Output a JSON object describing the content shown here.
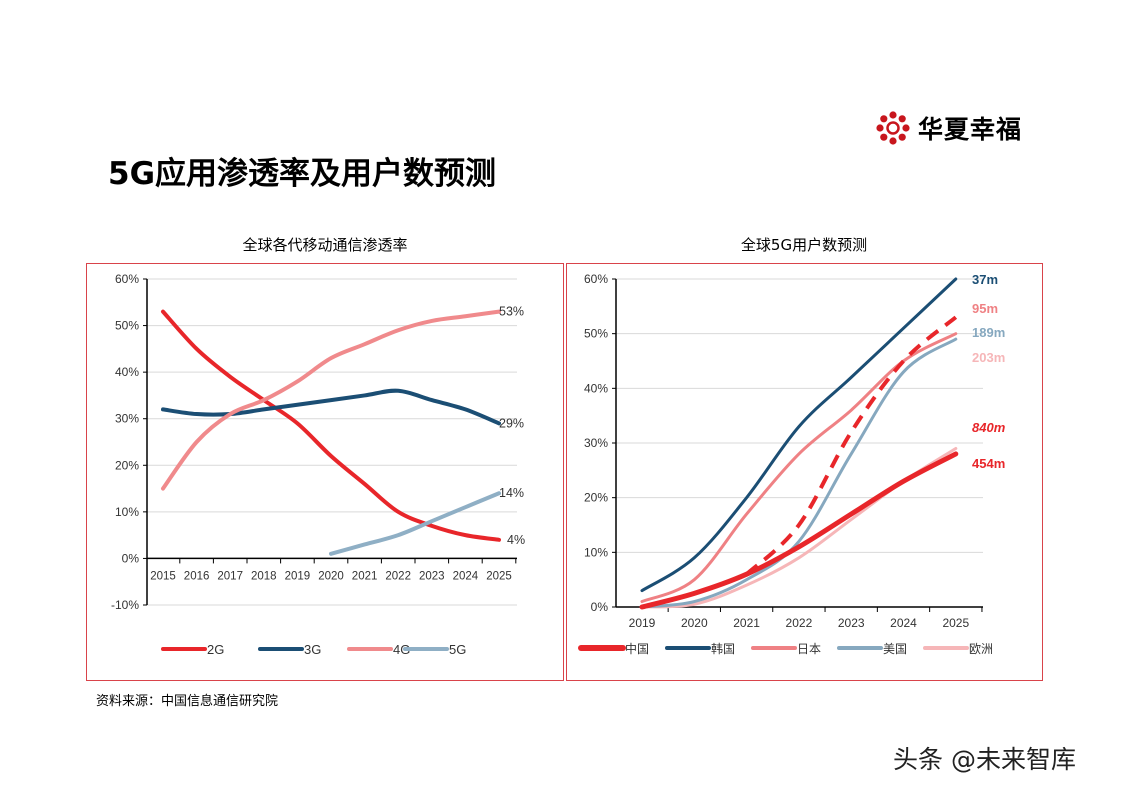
{
  "page": {
    "title": "5G应用渗透率及用户数预测",
    "logo_text": "华夏幸福",
    "source": "资料来源：中国信息通信研究院",
    "watermark": "头条 @未来智库"
  },
  "chart_data": [
    {
      "type": "line",
      "title": "全球各代移动通信渗透率",
      "x": [
        "2015",
        "2016",
        "2017",
        "2018",
        "2019",
        "2020",
        "2021",
        "2022",
        "2023",
        "2024",
        "2025"
      ],
      "ylim": [
        -10,
        60
      ],
      "yticks": [
        "-10%",
        "0%",
        "10%",
        "20%",
        "30%",
        "40%",
        "50%",
        "60%"
      ],
      "ytick_values": [
        -10,
        0,
        10,
        20,
        30,
        40,
        50,
        60
      ],
      "grid": true,
      "legend": "bottom",
      "series": [
        {
          "name": "2G",
          "color": "#e8262a",
          "values": [
            53,
            45,
            39,
            34,
            29,
            22,
            16,
            10,
            7,
            5,
            4
          ],
          "end_label": "4%"
        },
        {
          "name": "3G",
          "color": "#1b4e74",
          "values": [
            32,
            31,
            31,
            32,
            33,
            34,
            35,
            36,
            34,
            32,
            29
          ],
          "end_label": "29%"
        },
        {
          "name": "4G",
          "color": "#f08a8c",
          "values": [
            15,
            25,
            31,
            34,
            38,
            43,
            46,
            49,
            51,
            52,
            53
          ],
          "end_label": "53%"
        },
        {
          "name": "5G",
          "color": "#8fafc5",
          "values": [
            null,
            null,
            null,
            null,
            null,
            1,
            3,
            5,
            8,
            11,
            14
          ],
          "end_label": "14%"
        }
      ]
    },
    {
      "type": "line",
      "title": "全球5G用户数预测",
      "x": [
        "2019",
        "2020",
        "2021",
        "2022",
        "2023",
        "2024",
        "2025"
      ],
      "ylim": [
        0,
        60
      ],
      "yticks": [
        "0%",
        "10%",
        "20%",
        "30%",
        "40%",
        "50%",
        "60%"
      ],
      "ytick_values": [
        0,
        10,
        20,
        30,
        40,
        50,
        60
      ],
      "grid": true,
      "legend": "bottom",
      "series": [
        {
          "name": "中国",
          "color": "#e8262a",
          "values": [
            0,
            2.5,
            6,
            11,
            17,
            23,
            28
          ],
          "end_label": "454m",
          "width": 5
        },
        {
          "name": "韩国",
          "color": "#1b4e74",
          "values": [
            3,
            9,
            20,
            33,
            42,
            51,
            60
          ],
          "end_label": "37m"
        },
        {
          "name": "日本",
          "color": "#ef8184",
          "values": [
            1,
            5,
            17,
            28,
            36,
            45,
            50
          ],
          "end_label": "95m"
        },
        {
          "name": "美国",
          "color": "#86a8bf",
          "values": [
            0,
            1,
            5,
            12,
            28,
            43,
            49
          ],
          "end_label": "189m"
        },
        {
          "name": "欧洲",
          "color": "#f6b6b8",
          "values": [
            0,
            0.5,
            4,
            9,
            16,
            23,
            29
          ],
          "end_label": "203m"
        },
        {
          "name": "",
          "color": "#e8262a",
          "dashed": true,
          "values": [
            null,
            null,
            6,
            15,
            32,
            45,
            53
          ],
          "end_label": "840m"
        }
      ]
    }
  ]
}
